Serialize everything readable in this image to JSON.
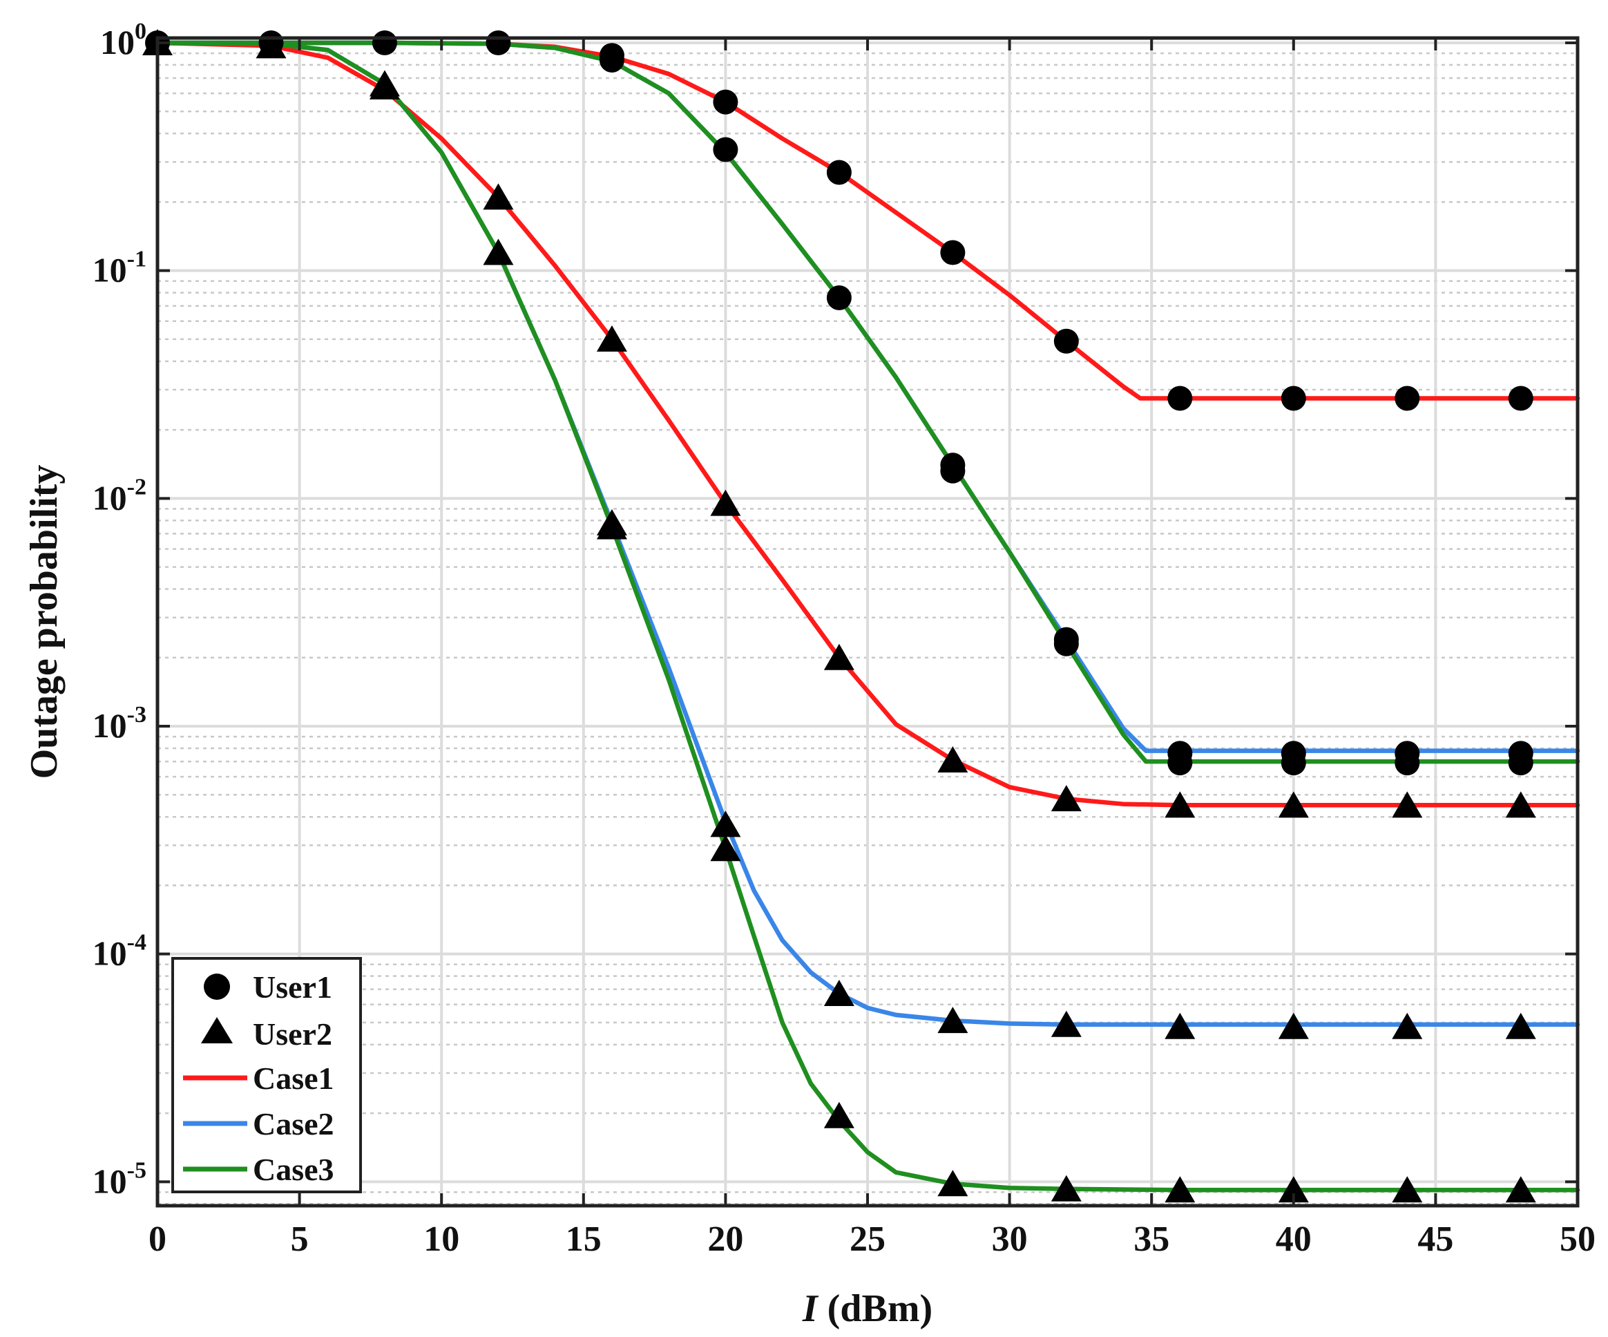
{
  "chart_data": {
    "type": "line",
    "xlabel_italic": "I",
    "xlabel_rest": " (dBm)",
    "ylabel": "Outage probability",
    "xlim": [
      0,
      50
    ],
    "ylim": [
      7.85e-06,
      1.05
    ],
    "yscale": "log",
    "grid": true,
    "legend_position": "bottom-left",
    "x_ticks": [
      "0",
      "5",
      "10",
      "15",
      "20",
      "25",
      "30",
      "35",
      "40",
      "45",
      "50"
    ],
    "y_ticks": [
      {
        "base": "10",
        "exp": "-5",
        "value": 1e-05
      },
      {
        "base": "10",
        "exp": "-4",
        "value": 0.0001
      },
      {
        "base": "10",
        "exp": "-3",
        "value": 0.001
      },
      {
        "base": "10",
        "exp": "-2",
        "value": 0.01
      },
      {
        "base": "10",
        "exp": "-1",
        "value": 0.1
      },
      {
        "base": "10",
        "exp": "0",
        "value": 1
      }
    ],
    "legend": [
      {
        "label": "User1",
        "kind": "marker",
        "marker": "circle"
      },
      {
        "label": "User2",
        "kind": "marker",
        "marker": "triangle"
      },
      {
        "label": "Case1",
        "kind": "line",
        "color": "#ff1a1a"
      },
      {
        "label": "Case2",
        "kind": "line",
        "color": "#3a86e8"
      },
      {
        "label": "Case3",
        "kind": "line",
        "color": "#1f8f1f"
      }
    ],
    "series": [
      {
        "name": "Case1",
        "role": "User1 analytical",
        "color": "#ff1a1a",
        "x": [
          0,
          4,
          8,
          12,
          14,
          16,
          18,
          20,
          22,
          24,
          26,
          28,
          30,
          32,
          34,
          34.6,
          36,
          40,
          44,
          50
        ],
        "y": [
          1,
          1,
          1,
          0.99,
          0.96,
          0.87,
          0.73,
          0.55,
          0.38,
          0.27,
          0.18,
          0.12,
          0.078,
          0.049,
          0.031,
          0.0275,
          0.0275,
          0.0275,
          0.0275,
          0.0275
        ]
      },
      {
        "name": "Case1",
        "role": "User2 analytical",
        "color": "#ff1a1a",
        "x": [
          0,
          4,
          6,
          8,
          10,
          12,
          14,
          16,
          18,
          20,
          22,
          24,
          26,
          28,
          30,
          32,
          34,
          36,
          40,
          44,
          50
        ],
        "y": [
          1,
          0.97,
          0.86,
          0.62,
          0.38,
          0.21,
          0.105,
          0.05,
          0.022,
          0.0095,
          0.0044,
          0.002,
          0.00102,
          0.00071,
          0.00054,
          0.00048,
          0.000455,
          0.00045,
          0.00045,
          0.00045,
          0.00045
        ]
      },
      {
        "name": "Case2",
        "role": "User1 analytical",
        "color": "#3a86e8",
        "x": [
          0,
          4,
          8,
          12,
          14,
          16,
          18,
          20,
          22,
          24,
          26,
          28,
          30,
          32,
          34,
          34.8,
          36,
          40,
          44,
          50
        ],
        "y": [
          1,
          1,
          1,
          0.99,
          0.95,
          0.83,
          0.6,
          0.33,
          0.16,
          0.076,
          0.034,
          0.014,
          0.0058,
          0.0024,
          0.00098,
          0.00078,
          0.00078,
          0.00078,
          0.00078,
          0.00078
        ]
      },
      {
        "name": "Case3",
        "role": "User1 analytical",
        "color": "#1f8f1f",
        "x": [
          0,
          4,
          8,
          12,
          14,
          16,
          18,
          20,
          22,
          24,
          26,
          28,
          30,
          32,
          34,
          34.8,
          36,
          40,
          44,
          50
        ],
        "y": [
          1,
          1,
          1,
          0.99,
          0.95,
          0.83,
          0.6,
          0.33,
          0.16,
          0.076,
          0.034,
          0.014,
          0.0058,
          0.0023,
          0.00092,
          0.0007,
          0.0007,
          0.0007,
          0.0007,
          0.0007
        ]
      },
      {
        "name": "Case2",
        "role": "User2 analytical",
        "color": "#3a86e8",
        "x": [
          0,
          4,
          6,
          8,
          10,
          12,
          14,
          16,
          18,
          20,
          21,
          22,
          23,
          24,
          25,
          26,
          28,
          30,
          32,
          36,
          40,
          44,
          50
        ],
        "y": [
          1,
          0.99,
          0.93,
          0.66,
          0.33,
          0.12,
          0.033,
          0.0078,
          0.0018,
          0.00038,
          0.00019,
          0.000115,
          8.3e-05,
          6.7e-05,
          5.8e-05,
          5.4e-05,
          5.1e-05,
          4.95e-05,
          4.9e-05,
          4.9e-05,
          4.9e-05,
          4.9e-05,
          4.9e-05
        ]
      },
      {
        "name": "Case3",
        "role": "User2 analytical",
        "color": "#1f8f1f",
        "x": [
          0,
          4,
          6,
          8,
          10,
          12,
          14,
          16,
          18,
          20,
          21,
          22,
          23,
          24,
          25,
          26,
          28,
          30,
          32,
          36,
          40,
          44,
          50
        ],
        "y": [
          1,
          0.99,
          0.93,
          0.66,
          0.33,
          0.12,
          0.033,
          0.0075,
          0.0016,
          0.00029,
          0.00012,
          5e-05,
          2.7e-05,
          1.85e-05,
          1.35e-05,
          1.1e-05,
          9.8e-06,
          9.4e-06,
          9.3e-06,
          9.2e-06,
          9.2e-06,
          9.2e-06,
          9.2e-06
        ]
      }
    ],
    "markers": [
      {
        "name": "User1",
        "marker": "circle",
        "x": [
          0,
          4,
          8,
          12,
          16,
          20,
          24,
          28,
          32,
          36,
          40,
          44,
          48
        ],
        "y": [
          1,
          1,
          1,
          1,
          0.88,
          0.55,
          0.27,
          0.12,
          0.049,
          0.0275,
          0.0275,
          0.0275,
          0.0275
        ]
      },
      {
        "name": "User1",
        "marker": "circle",
        "x": [
          16,
          20,
          24,
          28,
          32,
          36,
          40,
          44,
          48
        ],
        "y": [
          0.84,
          0.34,
          0.076,
          0.014,
          0.0024,
          0.00076,
          0.00076,
          0.00076,
          0.00076
        ]
      },
      {
        "name": "User1",
        "marker": "circle",
        "x": [
          28,
          32,
          36,
          40,
          44,
          48
        ],
        "y": [
          0.0132,
          0.0023,
          0.00069,
          0.00069,
          0.00069,
          0.00069
        ]
      },
      {
        "name": "User2",
        "marker": "triangle",
        "x": [
          0,
          4,
          8,
          12,
          16,
          20,
          24,
          28,
          32,
          36,
          40,
          44,
          48
        ],
        "y": [
          1,
          0.97,
          0.64,
          0.21,
          0.05,
          0.0095,
          0.002,
          0.00071,
          0.00048,
          0.00045,
          0.00045,
          0.00045,
          0.00045
        ]
      },
      {
        "name": "User2",
        "marker": "triangle",
        "x": [
          8,
          12,
          16,
          20,
          24,
          28,
          32,
          36,
          40,
          44,
          48
        ],
        "y": [
          0.66,
          0.12,
          0.0078,
          0.00037,
          6.7e-05,
          5.1e-05,
          4.9e-05,
          4.8e-05,
          4.8e-05,
          4.8e-05,
          4.8e-05
        ]
      },
      {
        "name": "User2",
        "marker": "triangle",
        "x": [
          16,
          20,
          24,
          28,
          32,
          36,
          40,
          44,
          48
        ],
        "y": [
          0.0075,
          0.00029,
          1.95e-05,
          9.8e-06,
          9.3e-06,
          9.2e-06,
          9.2e-06,
          9.2e-06,
          9.2e-06
        ]
      }
    ]
  }
}
